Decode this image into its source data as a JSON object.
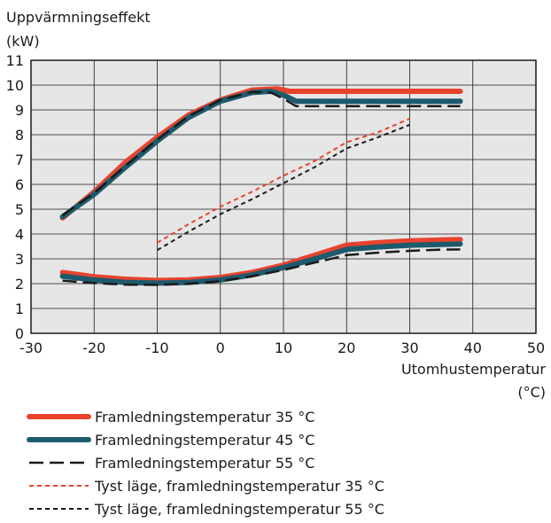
{
  "chart_data": {
    "type": "line",
    "ylabel_line1": "Uppvärmningseffekt",
    "ylabel_line2": "(kW)",
    "xlabel_line1": "Utomhustemperatur",
    "xlabel_line2": "(°C)",
    "xlim": [
      -30,
      50
    ],
    "ylim": [
      0,
      11
    ],
    "xticks": [
      -30,
      -20,
      -10,
      0,
      10,
      20,
      30,
      40,
      50
    ],
    "yticks": [
      0,
      1,
      2,
      3,
      4,
      5,
      6,
      7,
      8,
      9,
      10,
      11
    ],
    "grid": true,
    "background": "#e6e6e6",
    "legend_position": "bottom",
    "series": [
      {
        "name": "Framledningstemperatur 35 °C",
        "style": "solid-thick",
        "color": "#e8432d",
        "curves": [
          [
            [
              -25,
              4.65
            ],
            [
              -20,
              5.7
            ],
            [
              -15,
              6.9
            ],
            [
              -10,
              7.9
            ],
            [
              -5,
              8.8
            ],
            [
              0,
              9.4
            ],
            [
              5,
              9.8
            ],
            [
              9,
              9.85
            ],
            [
              11,
              9.75
            ],
            [
              15,
              9.75
            ],
            [
              20,
              9.75
            ],
            [
              30,
              9.75
            ],
            [
              38,
              9.75
            ]
          ],
          [
            [
              -25,
              2.45
            ],
            [
              -20,
              2.28
            ],
            [
              -15,
              2.18
            ],
            [
              -10,
              2.13
            ],
            [
              -5,
              2.15
            ],
            [
              0,
              2.25
            ],
            [
              5,
              2.45
            ],
            [
              10,
              2.75
            ],
            [
              15,
              3.15
            ],
            [
              20,
              3.55
            ],
            [
              25,
              3.65
            ],
            [
              30,
              3.72
            ],
            [
              35,
              3.76
            ],
            [
              38,
              3.78
            ]
          ]
        ]
      },
      {
        "name": "Framledningstemperatur 45 °C",
        "style": "solid-thick",
        "color": "#1e5a6e",
        "curves": [
          [
            [
              -25,
              4.7
            ],
            [
              -20,
              5.6
            ],
            [
              -15,
              6.7
            ],
            [
              -10,
              7.75
            ],
            [
              -5,
              8.7
            ],
            [
              0,
              9.35
            ],
            [
              5,
              9.7
            ],
            [
              8,
              9.75
            ],
            [
              10,
              9.6
            ],
            [
              12,
              9.35
            ],
            [
              15,
              9.35
            ],
            [
              20,
              9.35
            ],
            [
              30,
              9.35
            ],
            [
              38,
              9.35
            ]
          ],
          [
            [
              -25,
              2.3
            ],
            [
              -20,
              2.15
            ],
            [
              -15,
              2.05
            ],
            [
              -10,
              2.02
            ],
            [
              -5,
              2.05
            ],
            [
              0,
              2.15
            ],
            [
              5,
              2.35
            ],
            [
              10,
              2.65
            ],
            [
              15,
              3.0
            ],
            [
              20,
              3.38
            ],
            [
              25,
              3.48
            ],
            [
              30,
              3.55
            ],
            [
              35,
              3.58
            ],
            [
              38,
              3.6
            ]
          ]
        ]
      },
      {
        "name": "Framledningstemperatur 55 °C",
        "style": "dashed-long",
        "color": "#1a1a1a",
        "curves": [
          [
            [
              -25,
              4.75
            ],
            [
              -20,
              5.65
            ],
            [
              -15,
              6.75
            ],
            [
              -10,
              7.8
            ],
            [
              -5,
              8.75
            ],
            [
              0,
              9.4
            ],
            [
              5,
              9.72
            ],
            [
              8,
              9.7
            ],
            [
              10,
              9.45
            ],
            [
              12,
              9.15
            ],
            [
              15,
              9.15
            ],
            [
              20,
              9.15
            ],
            [
              30,
              9.15
            ],
            [
              38,
              9.15
            ]
          ],
          [
            [
              -25,
              2.12
            ],
            [
              -20,
              2.02
            ],
            [
              -15,
              1.96
            ],
            [
              -10,
              1.95
            ],
            [
              -5,
              2.0
            ],
            [
              0,
              2.1
            ],
            [
              5,
              2.3
            ],
            [
              10,
              2.55
            ],
            [
              15,
              2.85
            ],
            [
              20,
              3.15
            ],
            [
              25,
              3.25
            ],
            [
              30,
              3.32
            ],
            [
              35,
              3.37
            ],
            [
              38,
              3.38
            ]
          ]
        ]
      },
      {
        "name": "Tyst läge, framledningstemperatur 35 °C",
        "style": "dashed-short",
        "color": "#e8432d",
        "curves": [
          [
            [
              -10,
              3.65
            ],
            [
              -5,
              4.4
            ],
            [
              0,
              5.1
            ],
            [
              5,
              5.7
            ],
            [
              10,
              6.35
            ],
            [
              15,
              6.95
            ],
            [
              20,
              7.7
            ],
            [
              25,
              8.1
            ],
            [
              30,
              8.65
            ]
          ]
        ]
      },
      {
        "name": "Tyst läge, framledningstemperatur 55 °C",
        "style": "dashed-short",
        "color": "#1a1a1a",
        "curves": [
          [
            [
              -10,
              3.35
            ],
            [
              -5,
              4.1
            ],
            [
              0,
              4.8
            ],
            [
              5,
              5.4
            ],
            [
              10,
              6.05
            ],
            [
              15,
              6.7
            ],
            [
              20,
              7.45
            ],
            [
              25,
              7.9
            ],
            [
              30,
              8.4
            ]
          ]
        ]
      }
    ]
  }
}
